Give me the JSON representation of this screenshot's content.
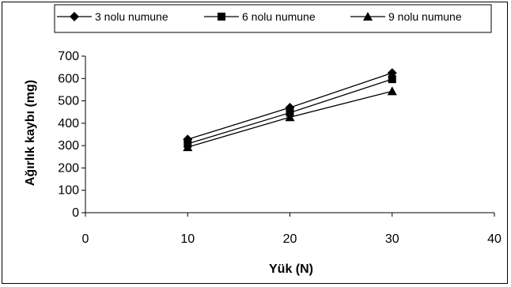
{
  "chart_data": {
    "type": "line",
    "title": "",
    "xlabel": "Yük (N)",
    "ylabel": "Ağırlık kaybı (mg)",
    "xlim": [
      0,
      40
    ],
    "ylim": [
      0,
      700
    ],
    "xticks": [
      0,
      10,
      20,
      30,
      40
    ],
    "yticks": [
      0,
      100,
      200,
      300,
      400,
      500,
      600,
      700
    ],
    "grid": false,
    "legend_position": "top",
    "series": [
      {
        "name": "3 nolu numune",
        "marker": "diamond",
        "x": [
          10,
          20,
          30
        ],
        "y": [
          328,
          470,
          625
        ]
      },
      {
        "name": "6 nolu numune",
        "marker": "square",
        "x": [
          10,
          20,
          30
        ],
        "y": [
          308,
          447,
          597
        ]
      },
      {
        "name": "9 nolu numune",
        "marker": "triangle",
        "x": [
          10,
          20,
          30
        ],
        "y": [
          293,
          427,
          543
        ]
      }
    ],
    "line_color": "#000000"
  }
}
